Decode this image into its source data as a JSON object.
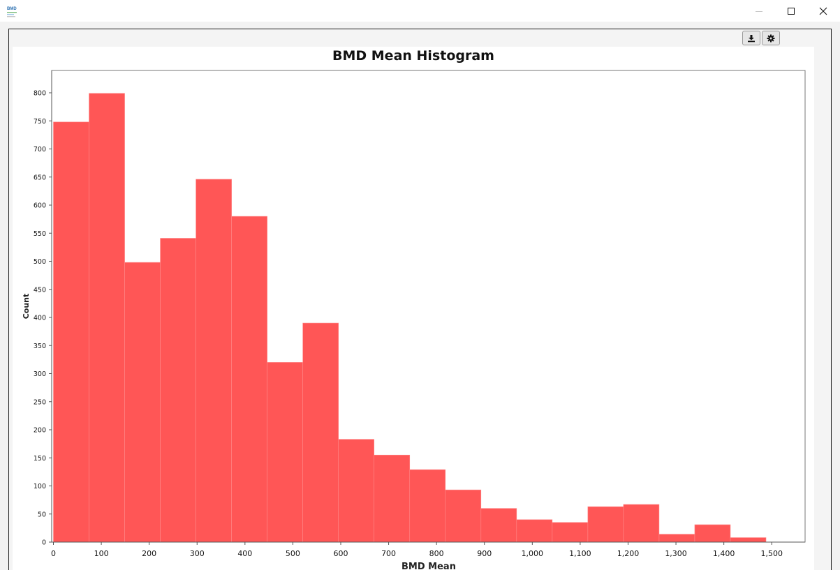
{
  "window": {
    "logo_text": "BMD",
    "minimize_icon": "minimize-icon",
    "maximize_icon": "maximize-icon",
    "close_icon": "close-icon"
  },
  "toolbar": {
    "download_icon": "download-icon",
    "settings_icon": "gear-icon"
  },
  "colors": {
    "bar_fill": "#ff5656",
    "bar_edge": "#ff8a8a",
    "axis": "#555555"
  },
  "chart_data": {
    "type": "bar",
    "title": "BMD Mean Histogram",
    "xlabel": "BMD Mean",
    "ylabel": "Count",
    "xlim": [
      0,
      1560
    ],
    "ylim": [
      0,
      840
    ],
    "grid": false,
    "x_ticks": [
      0,
      100,
      200,
      300,
      400,
      500,
      600,
      700,
      800,
      900,
      1000,
      1100,
      1200,
      1300,
      1400,
      1500
    ],
    "x_tick_labels": [
      "0",
      "100",
      "200",
      "300",
      "400",
      "500",
      "600",
      "700",
      "800",
      "900",
      "1,000",
      "1,100",
      "1,200",
      "1,300",
      "1,400",
      "1,500"
    ],
    "y_ticks": [
      0,
      50,
      100,
      150,
      200,
      250,
      300,
      350,
      400,
      450,
      500,
      550,
      600,
      650,
      700,
      750,
      800
    ],
    "y_tick_labels": [
      "0",
      "50",
      "100",
      "150",
      "200",
      "250",
      "300",
      "350",
      "400",
      "450",
      "500",
      "550",
      "600",
      "650",
      "700",
      "750",
      "800"
    ],
    "bin_edges": [
      0,
      74.4,
      148.8,
      223.2,
      297.6,
      372,
      446.4,
      520.8,
      595.2,
      669.6,
      744,
      818.4,
      892.8,
      967.2,
      1041.6,
      1116,
      1190.4,
      1264.8,
      1339.2,
      1413.6,
      1488
    ],
    "values": [
      748,
      799,
      498,
      541,
      646,
      580,
      320,
      390,
      183,
      155,
      129,
      93,
      60,
      40,
      35,
      63,
      67,
      14,
      31,
      8
    ]
  }
}
